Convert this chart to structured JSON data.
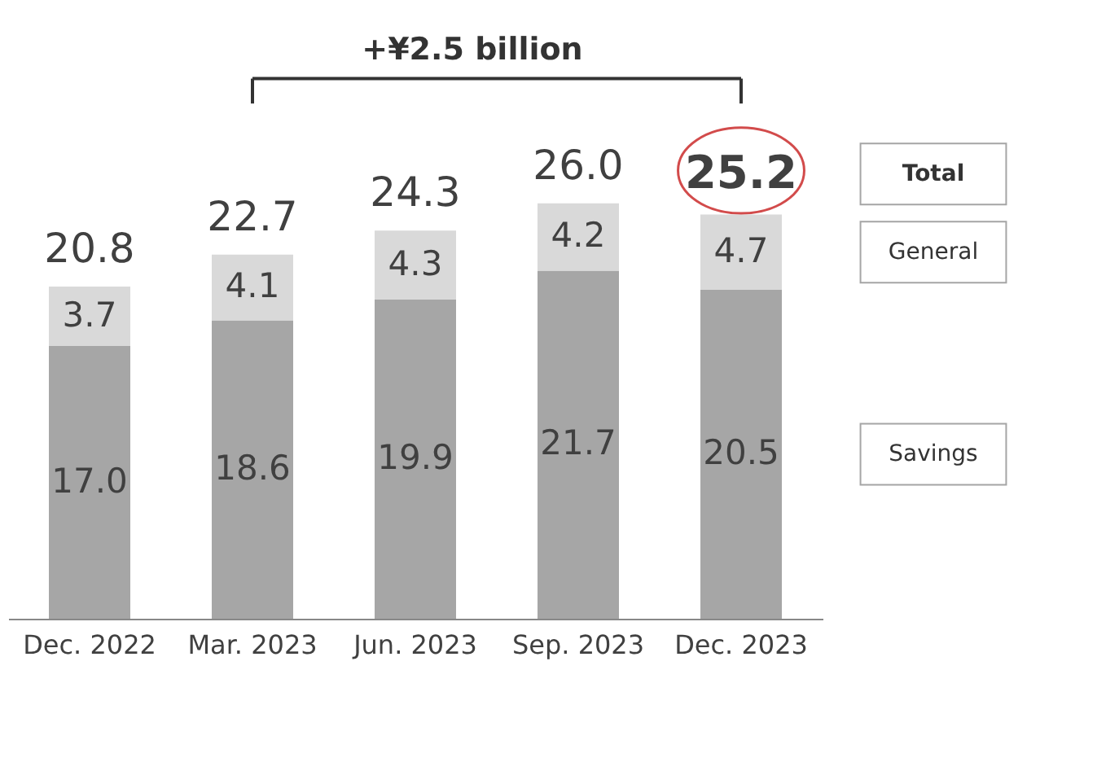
{
  "chart_data": {
    "type": "bar",
    "stacked": true,
    "legend": "right",
    "categories": [
      "Dec. 2022",
      "Mar. 2023",
      "Jun. 2023",
      "Sep. 2023",
      "Dec. 2023"
    ],
    "series": [
      {
        "name": "Savings",
        "color": "#a6a6a6",
        "values": [
          17.0,
          18.6,
          19.9,
          21.7,
          20.5
        ],
        "value_labels": [
          "17.0",
          "18.6",
          "19.9",
          "21.7",
          "20.5"
        ]
      },
      {
        "name": "General",
        "color": "#d9d9d9",
        "values": [
          3.7,
          4.1,
          4.3,
          4.2,
          4.7
        ],
        "value_labels": [
          "3.7",
          "4.1",
          "4.3",
          "4.2",
          "4.7"
        ]
      }
    ],
    "totals": [
      "20.8",
      "22.7",
      "24.3",
      "26.0",
      "25.2"
    ],
    "annotations": [
      "+¥2.5 billion",
      "Total"
    ]
  }
}
